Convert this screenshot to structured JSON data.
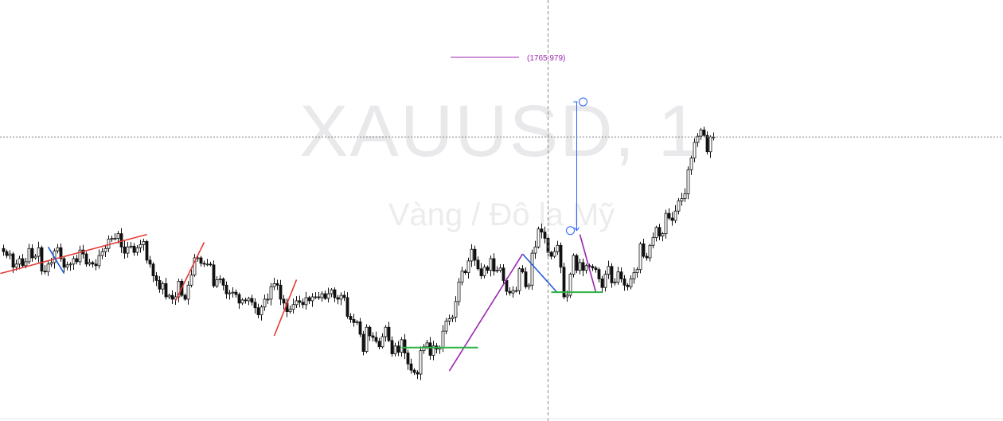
{
  "watermark": {
    "symbol": "XAUUSD, 1",
    "description": "Vàng / Đô la Mỹ"
  },
  "price_label": {
    "text": "(1765.979)",
    "value": 1765.979
  },
  "colors": {
    "candle": "#111111",
    "up_body": "#ffffff",
    "down_body": "#111111",
    "zigzag_red": "#e53935",
    "zigzag_purple": "#9c27b0",
    "zigzag_blue": "#1e5bd8",
    "support_green": "#2fb344",
    "measure_blue": "#2962ff",
    "crosshair": "#888888"
  },
  "chart_data": {
    "type": "candlestick",
    "title": "",
    "xlabel": "",
    "ylabel": "",
    "ylim": [
      1762.0,
      1767.0
    ],
    "grid": false,
    "crosshair": {
      "bar_index": 171,
      "price": 1765.55
    },
    "closes": [
      1764.08,
      1764.03,
      1764.05,
      1763.88,
      1763.92,
      1763.99,
      1763.9,
      1763.95,
      1764.12,
      1764.0,
      1764.02,
      1764.13,
      1763.83,
      1763.82,
      1763.92,
      1763.94,
      1764.09,
      1764.13,
      1763.99,
      1763.88,
      1763.91,
      1763.92,
      1763.99,
      1763.95,
      1764.1,
      1764.05,
      1763.92,
      1763.94,
      1763.92,
      1763.9,
      1764.03,
      1764.08,
      1764.12,
      1764.24,
      1764.25,
      1764.25,
      1764.31,
      1764.14,
      1764.06,
      1764.14,
      1764.15,
      1764.07,
      1764.13,
      1764.17,
      1764.21,
      1763.97,
      1763.92,
      1763.77,
      1763.71,
      1763.6,
      1763.67,
      1763.5,
      1763.52,
      1763.47,
      1763.5,
      1763.7,
      1763.52,
      1763.47,
      1763.65,
      1763.78,
      1764.0,
      1764.0,
      1763.93,
      1763.92,
      1763.92,
      1763.91,
      1763.64,
      1763.72,
      1763.73,
      1763.65,
      1763.54,
      1763.55,
      1763.56,
      1763.53,
      1763.42,
      1763.46,
      1763.45,
      1763.48,
      1763.43,
      1763.36,
      1763.27,
      1763.37,
      1763.47,
      1763.47,
      1763.63,
      1763.67,
      1763.65,
      1763.47,
      1763.42,
      1763.31,
      1763.34,
      1763.4,
      1763.45,
      1763.43,
      1763.4,
      1763.49,
      1763.45,
      1763.5,
      1763.5,
      1763.49,
      1763.54,
      1763.48,
      1763.54,
      1763.59,
      1763.49,
      1763.47,
      1763.52,
      1763.49,
      1763.25,
      1763.21,
      1763.17,
      1763.18,
      1763.02,
      1762.8,
      1763.11,
      1763.0,
      1762.98,
      1762.93,
      1762.86,
      1762.99,
      1763.11,
      1762.94,
      1762.77,
      1762.87,
      1762.79,
      1762.95,
      1762.78,
      1762.64,
      1762.56,
      1762.53,
      1762.51,
      1762.81,
      1762.86,
      1762.91,
      1762.75,
      1762.87,
      1762.83,
      1762.85,
      1763.06,
      1763.19,
      1763.22,
      1763.24,
      1763.44,
      1763.69,
      1763.83,
      1763.81,
      1763.96,
      1764.11,
      1763.97,
      1763.86,
      1763.77,
      1763.88,
      1763.84,
      1763.99,
      1763.83,
      1763.84,
      1763.87,
      1763.71,
      1763.57,
      1763.55,
      1763.58,
      1763.58,
      1763.86,
      1763.82,
      1763.63,
      1763.65,
      1764.06,
      1764.14,
      1764.37,
      1764.33,
      1764.25,
      1764.07,
      1764.02,
      1764.08,
      1764.16,
      1763.88,
      1763.5,
      1763.52,
      1763.79,
      1764.03,
      1763.84,
      1763.94,
      1763.84,
      1763.9,
      1763.89,
      1763.87,
      1763.85,
      1763.73,
      1763.62,
      1763.79,
      1763.89,
      1763.68,
      1763.69,
      1763.82,
      1763.73,
      1763.65,
      1763.63,
      1763.73,
      1763.81,
      1763.85,
      1764.18,
      1764.02,
      1764.0,
      1764.16,
      1764.26,
      1764.39,
      1764.28,
      1764.31,
      1764.57,
      1764.51,
      1764.48,
      1764.6,
      1764.73,
      1764.76,
      1764.82,
      1765.13,
      1765.28,
      1765.48,
      1765.56,
      1765.64,
      1765.57,
      1765.36,
      1765.55,
      1765.54
    ]
  }
}
